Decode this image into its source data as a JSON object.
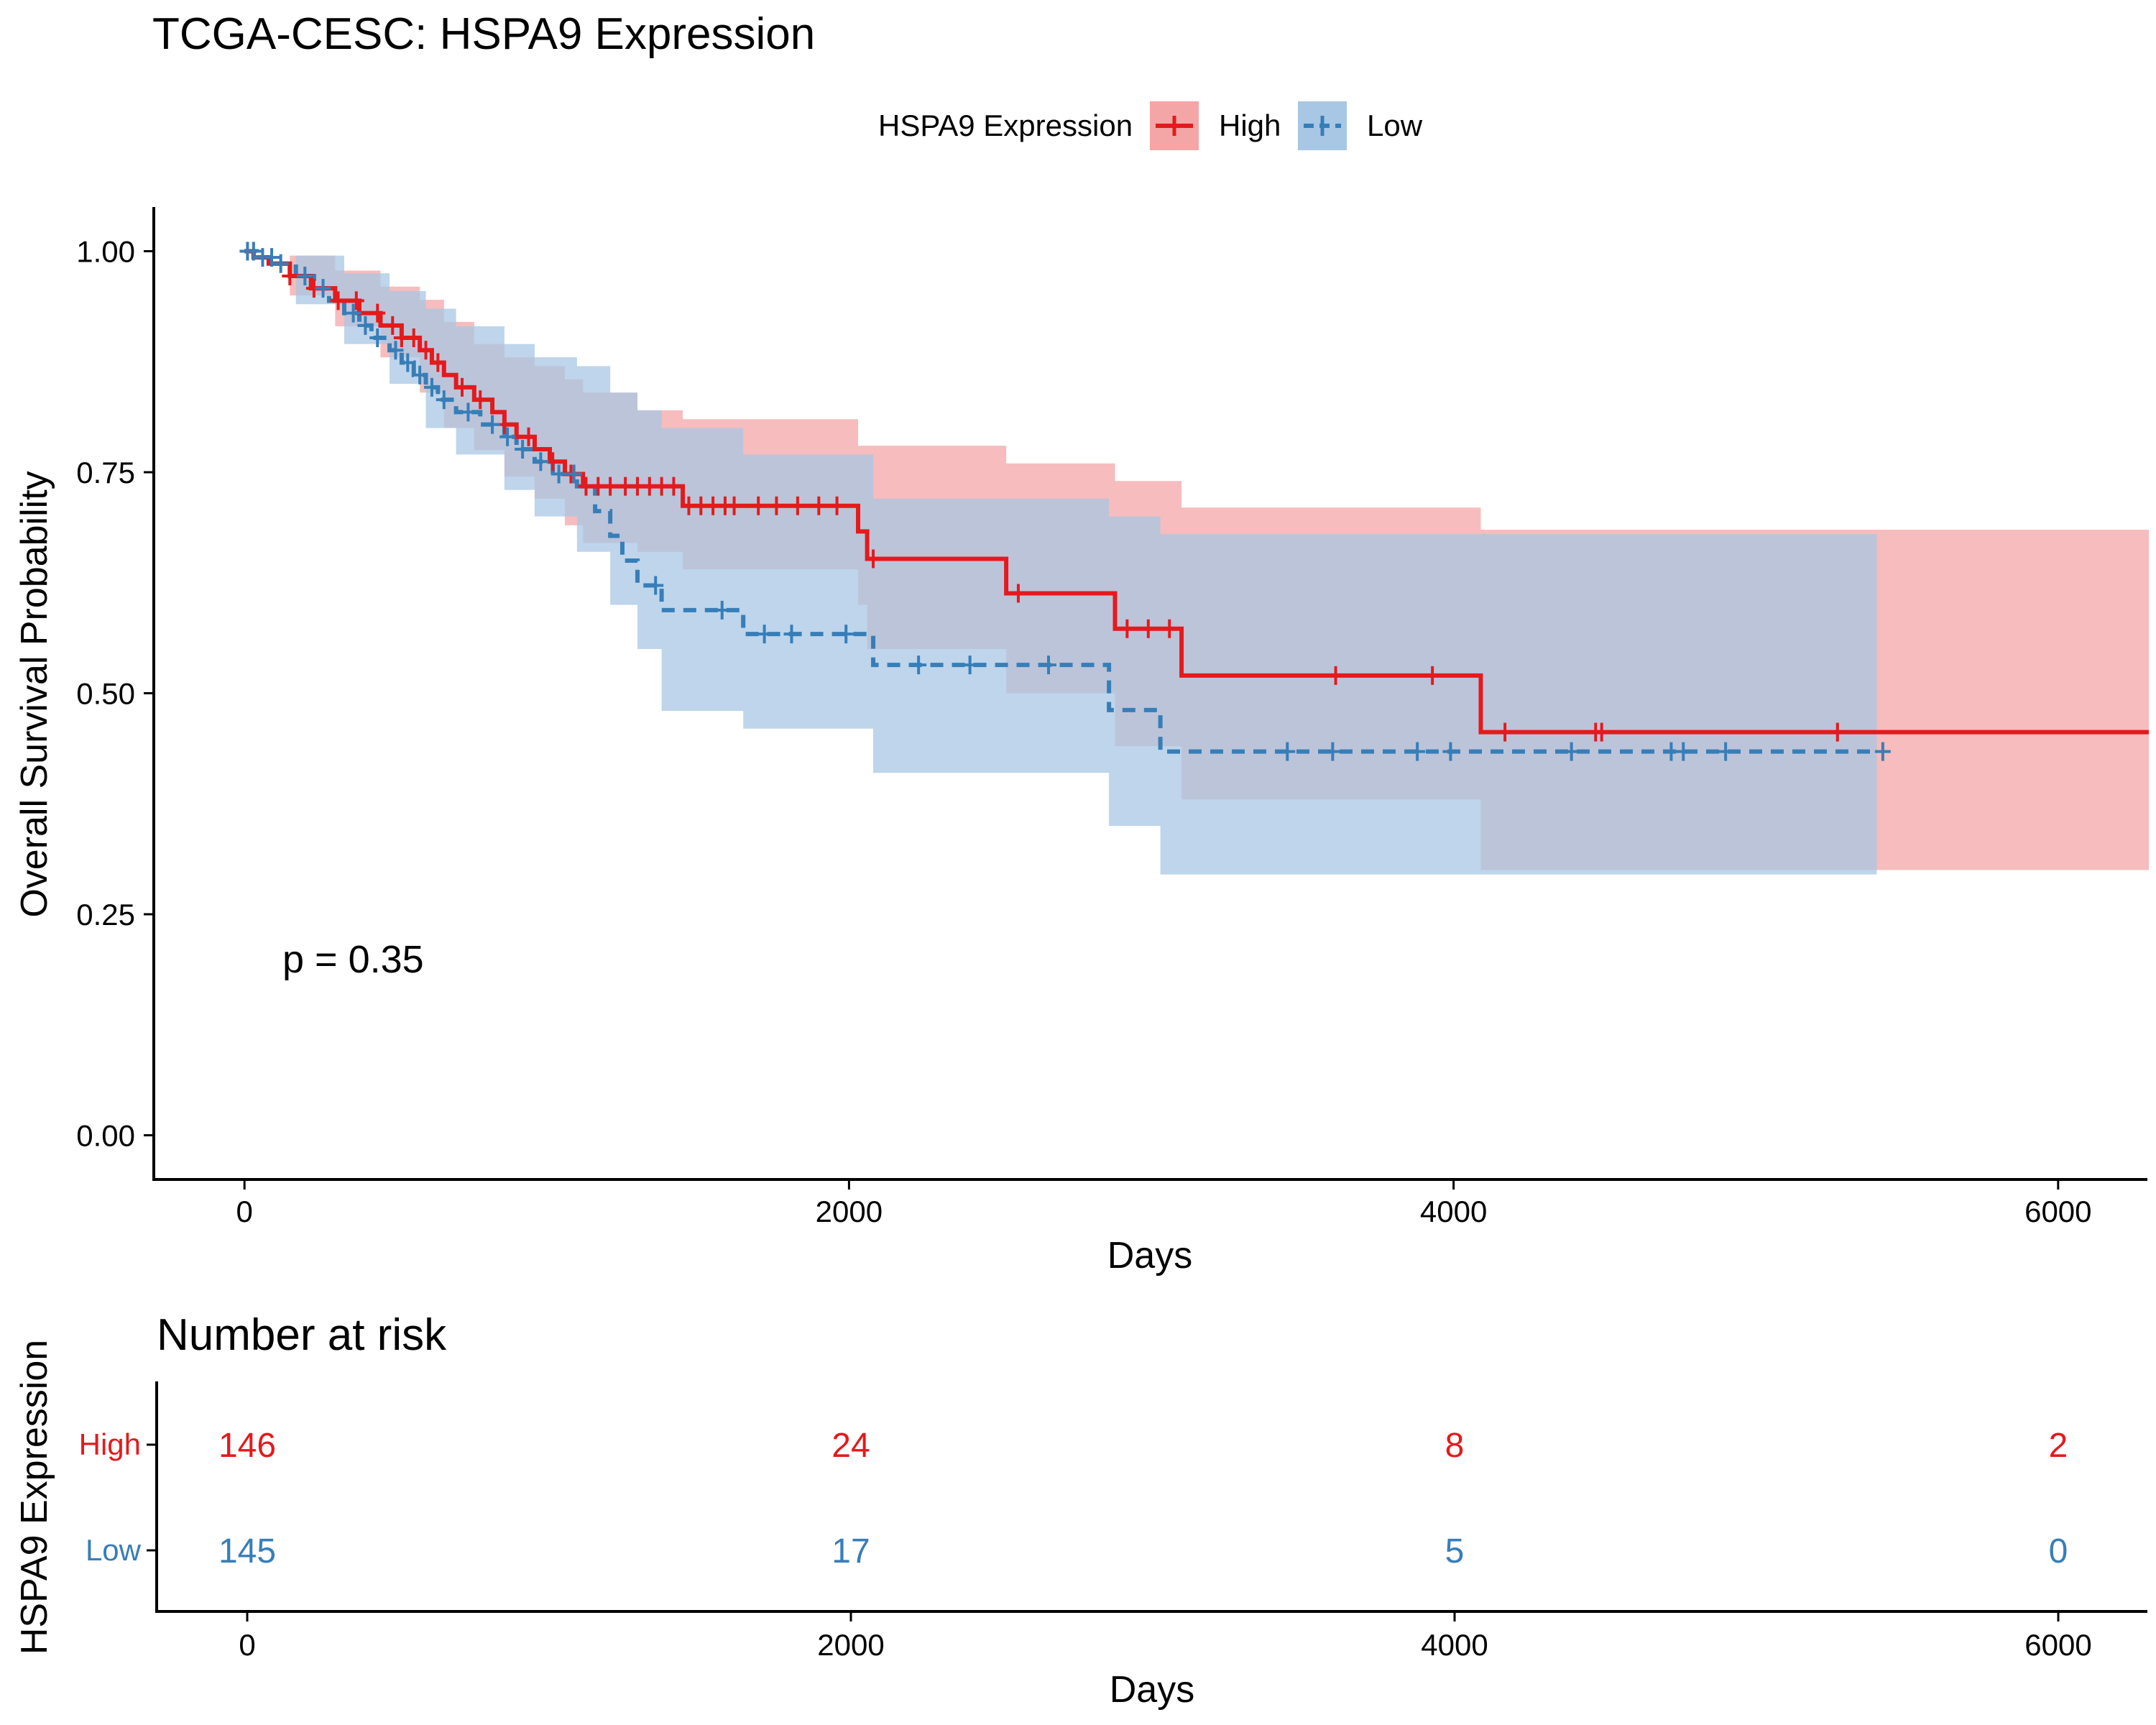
{
  "colors": {
    "high": "#e41a1c",
    "low": "#377eb8",
    "high_band": "#f4a6a7",
    "low_band": "#a8c7e4",
    "background": "#ffffff"
  },
  "chart_data": {
    "type": "line",
    "subtype": "kaplan-meier",
    "title": "TCGA-CESC: HSPA9 Expression",
    "xlabel": "Days",
    "ylabel": "Overall Survival Probability",
    "xlim": [
      -300,
      6300
    ],
    "ylim": [
      -0.05,
      1.05
    ],
    "x_ticks": [
      0,
      2000,
      4000,
      6000
    ],
    "y_ticks": [
      0.0,
      0.25,
      0.5,
      0.75,
      1.0
    ],
    "y_tick_labels": [
      "0.00",
      "0.25",
      "0.50",
      "0.75",
      "1.00"
    ],
    "grid": false,
    "legend": {
      "title": "HSPA9 Expression",
      "placement": "top",
      "entries": [
        "High",
        "Low"
      ]
    },
    "annotation": "p = 0.35",
    "series": [
      {
        "name": "High",
        "color": "#e41a1c",
        "line_style": "solid",
        "steps": [
          [
            0,
            1.0
          ],
          [
            30,
            0.993
          ],
          [
            80,
            0.986
          ],
          [
            150,
            0.972
          ],
          [
            220,
            0.958
          ],
          [
            300,
            0.944
          ],
          [
            380,
            0.93
          ],
          [
            450,
            0.916
          ],
          [
            520,
            0.902
          ],
          [
            580,
            0.888
          ],
          [
            620,
            0.874
          ],
          [
            660,
            0.86
          ],
          [
            700,
            0.846
          ],
          [
            760,
            0.832
          ],
          [
            820,
            0.818
          ],
          [
            860,
            0.804
          ],
          [
            900,
            0.79
          ],
          [
            960,
            0.776
          ],
          [
            1010,
            0.762
          ],
          [
            1060,
            0.748
          ],
          [
            1120,
            0.734
          ],
          [
            1450,
            0.712
          ],
          [
            2030,
            0.683
          ],
          [
            2060,
            0.652
          ],
          [
            2520,
            0.613
          ],
          [
            2880,
            0.573
          ],
          [
            3100,
            0.52
          ],
          [
            4090,
            0.456
          ],
          [
            6300,
            0.456
          ]
        ],
        "ci_steps": [
          [
            0,
            1.0,
            1.0
          ],
          [
            150,
            0.95,
            0.995
          ],
          [
            300,
            0.915,
            0.978
          ],
          [
            450,
            0.88,
            0.96
          ],
          [
            580,
            0.84,
            0.945
          ],
          [
            660,
            0.8,
            0.92
          ],
          [
            760,
            0.775,
            0.895
          ],
          [
            860,
            0.745,
            0.88
          ],
          [
            960,
            0.72,
            0.87
          ],
          [
            1060,
            0.69,
            0.855
          ],
          [
            1120,
            0.67,
            0.84
          ],
          [
            1300,
            0.66,
            0.82
          ],
          [
            1450,
            0.64,
            0.81
          ],
          [
            2030,
            0.6,
            0.78
          ],
          [
            2060,
            0.55,
            0.78
          ],
          [
            2520,
            0.5,
            0.76
          ],
          [
            2880,
            0.44,
            0.74
          ],
          [
            3100,
            0.38,
            0.71
          ],
          [
            4090,
            0.3,
            0.685
          ],
          [
            6300,
            0.3,
            0.685
          ]
        ],
        "censor_times": [
          150,
          230,
          310,
          370,
          440,
          490,
          520,
          560,
          600,
          640,
          720,
          780,
          860,
          940,
          1020,
          1080,
          1130,
          1170,
          1210,
          1260,
          1300,
          1340,
          1380,
          1420,
          1470,
          1510,
          1550,
          1590,
          1620,
          1700,
          1760,
          1830,
          1900,
          1960,
          2080,
          2560,
          2920,
          2990,
          3060,
          3610,
          3930,
          4170,
          4470,
          4490,
          5270
        ]
      },
      {
        "name": "Low",
        "color": "#377eb8",
        "line_style": "dashed",
        "steps": [
          [
            0,
            1.0
          ],
          [
            40,
            0.993
          ],
          [
            100,
            0.986
          ],
          [
            170,
            0.972
          ],
          [
            230,
            0.958
          ],
          [
            280,
            0.944
          ],
          [
            330,
            0.93
          ],
          [
            380,
            0.916
          ],
          [
            420,
            0.902
          ],
          [
            480,
            0.888
          ],
          [
            520,
            0.874
          ],
          [
            560,
            0.86
          ],
          [
            600,
            0.846
          ],
          [
            640,
            0.832
          ],
          [
            700,
            0.818
          ],
          [
            780,
            0.804
          ],
          [
            860,
            0.79
          ],
          [
            900,
            0.776
          ],
          [
            960,
            0.762
          ],
          [
            1020,
            0.748
          ],
          [
            1100,
            0.734
          ],
          [
            1160,
            0.706
          ],
          [
            1210,
            0.678
          ],
          [
            1250,
            0.65
          ],
          [
            1300,
            0.622
          ],
          [
            1380,
            0.594
          ],
          [
            1650,
            0.567
          ],
          [
            2080,
            0.532
          ],
          [
            2860,
            0.481
          ],
          [
            3030,
            0.434
          ],
          [
            5400,
            0.434
          ]
        ],
        "ci_steps": [
          [
            0,
            1.0,
            1.0
          ],
          [
            170,
            0.94,
            0.995
          ],
          [
            330,
            0.895,
            0.975
          ],
          [
            480,
            0.85,
            0.955
          ],
          [
            600,
            0.8,
            0.935
          ],
          [
            700,
            0.77,
            0.915
          ],
          [
            860,
            0.73,
            0.895
          ],
          [
            960,
            0.7,
            0.88
          ],
          [
            1100,
            0.66,
            0.87
          ],
          [
            1210,
            0.6,
            0.84
          ],
          [
            1300,
            0.55,
            0.82
          ],
          [
            1380,
            0.48,
            0.8
          ],
          [
            1650,
            0.46,
            0.77
          ],
          [
            2080,
            0.41,
            0.72
          ],
          [
            2860,
            0.35,
            0.7
          ],
          [
            3030,
            0.295,
            0.68
          ],
          [
            5400,
            0.295,
            0.68
          ]
        ],
        "censor_times": [
          10,
          30,
          60,
          90,
          120,
          200,
          260,
          360,
          400,
          440,
          500,
          540,
          580,
          620,
          660,
          740,
          820,
          870,
          920,
          980,
          1040,
          1090,
          1360,
          1580,
          1720,
          1810,
          1990,
          2230,
          2400,
          2660,
          3450,
          3600,
          3880,
          3990,
          4390,
          4720,
          4760,
          4900,
          5420
        ]
      }
    ],
    "risk_table": {
      "title": "Number at risk",
      "ylabel": "HSPA9 Expression",
      "xlabel": "Days",
      "x_ticks": [
        0,
        2000,
        4000,
        6000
      ],
      "rows": [
        {
          "name": "High",
          "color": "#e41a1c",
          "values": [
            146,
            24,
            8,
            2
          ]
        },
        {
          "name": "Low",
          "color": "#377eb8",
          "values": [
            145,
            17,
            5,
            0
          ]
        }
      ]
    }
  }
}
